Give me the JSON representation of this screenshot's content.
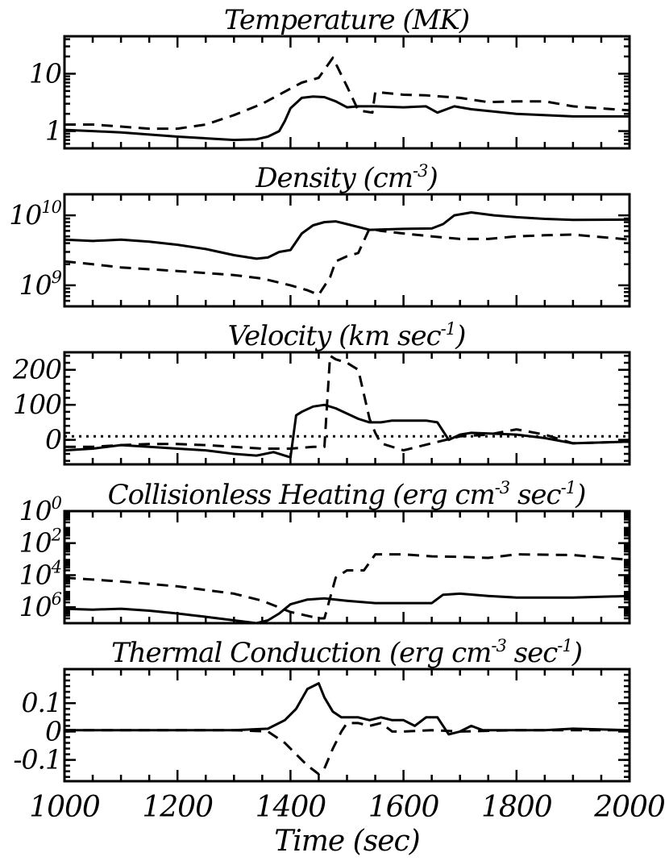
{
  "chart_data": [
    {
      "type": "line",
      "title": "Temperature (MK)",
      "yscale": "log",
      "ylim": [
        0.5,
        45
      ],
      "yticks": [
        {
          "value": 1,
          "label": "1"
        },
        {
          "value": 10,
          "label": "10"
        }
      ],
      "series": [
        {
          "style": "solid",
          "x": [
            1000,
            1050,
            1100,
            1200,
            1300,
            1340,
            1360,
            1380,
            1390,
            1400,
            1420,
            1440,
            1460,
            1480,
            1500,
            1520,
            1550,
            1600,
            1640,
            1660,
            1690,
            1700,
            1720,
            1800,
            1900,
            2000
          ],
          "y": [
            1.05,
            1.0,
            0.95,
            0.8,
            0.7,
            0.72,
            0.8,
            1.0,
            1.5,
            2.5,
            3.8,
            4.0,
            3.9,
            3.3,
            2.6,
            2.7,
            2.7,
            2.6,
            2.7,
            2.1,
            2.7,
            2.6,
            2.4,
            2.0,
            1.8,
            1.8
          ]
        },
        {
          "style": "dashed",
          "x": [
            1000,
            1050,
            1100,
            1150,
            1200,
            1250,
            1300,
            1350,
            1400,
            1420,
            1450,
            1475,
            1500,
            1520,
            1545,
            1550,
            1600,
            1640,
            1700,
            1750,
            1800,
            1850,
            1900,
            2000
          ],
          "y": [
            1.3,
            1.3,
            1.2,
            1.1,
            1.1,
            1.3,
            1.9,
            3.0,
            5.5,
            7.0,
            8.5,
            19.0,
            6.0,
            2.3,
            2.1,
            4.8,
            4.3,
            4.2,
            3.8,
            3.2,
            3.3,
            3.3,
            2.7,
            2.3
          ]
        }
      ]
    },
    {
      "type": "line",
      "title": "Density (cm",
      "title_sup": "-3",
      "title_end": ")",
      "yscale": "log",
      "ylim": [
        500000000,
        20000000000
      ],
      "yticks": [
        {
          "value": 1000000000,
          "base": "10",
          "exp": "9"
        },
        {
          "value": 10000000000,
          "base": "10",
          "exp": "10"
        }
      ],
      "series": [
        {
          "style": "solid",
          "x": [
            1000,
            1050,
            1100,
            1150,
            1200,
            1250,
            1300,
            1340,
            1360,
            1380,
            1400,
            1420,
            1440,
            1460,
            1480,
            1500,
            1540,
            1600,
            1650,
            1670,
            1690,
            1720,
            1760,
            1800,
            1850,
            1900,
            2000
          ],
          "y": [
            4500000000,
            4300000000,
            4500000000,
            4200000000,
            3800000000,
            3300000000,
            2700000000,
            2400000000,
            2500000000,
            3000000000,
            3200000000,
            5500000000,
            7200000000,
            8000000000,
            8200000000,
            7500000000,
            6200000000,
            6400000000,
            6500000000,
            7500000000,
            10000000000,
            11000000000,
            10000000000,
            9400000000,
            8900000000,
            8600000000,
            8700000000
          ]
        },
        {
          "style": "dashed",
          "x": [
            1000,
            1050,
            1100,
            1200,
            1300,
            1350,
            1400,
            1430,
            1450,
            1470,
            1480,
            1500,
            1520,
            1540,
            1560,
            1600,
            1650,
            1700,
            1750,
            1800,
            1850,
            1900,
            2000
          ],
          "y": [
            2200000000,
            2000000000,
            1800000000,
            1600000000,
            1400000000,
            1250000000,
            1000000000,
            850000000,
            730000000,
            1300000000,
            2200000000,
            2600000000,
            2900000000,
            6500000000,
            6000000000,
            5500000000,
            5000000000,
            4600000000,
            4600000000,
            5000000000,
            5200000000,
            5300000000,
            4500000000
          ]
        }
      ]
    },
    {
      "type": "line",
      "title": "Velocity (km sec",
      "title_sup": "-1",
      "title_end": ")",
      "yscale": "linear",
      "ylim": [
        -70,
        250
      ],
      "yticks": [
        {
          "value": 0,
          "label": "0"
        },
        {
          "value": 100,
          "label": "100"
        },
        {
          "value": 200,
          "label": "200"
        }
      ],
      "reference_line": {
        "y": 10,
        "style": "dotted"
      },
      "series": [
        {
          "style": "solid",
          "x": [
            1000,
            1050,
            1100,
            1150,
            1200,
            1250,
            1300,
            1340,
            1370,
            1400,
            1410,
            1420,
            1440,
            1460,
            1480,
            1500,
            1520,
            1540,
            1560,
            1580,
            1600,
            1640,
            1660,
            1680,
            1700,
            1720,
            1800,
            1850,
            1900,
            2000
          ],
          "y": [
            -30,
            -25,
            -15,
            -20,
            -25,
            -30,
            -40,
            -45,
            -35,
            -50,
            70,
            80,
            95,
            100,
            90,
            75,
            60,
            50,
            50,
            55,
            55,
            55,
            50,
            0,
            15,
            20,
            15,
            5,
            -10,
            -5
          ]
        },
        {
          "style": "dashed",
          "x": [
            1000,
            1050,
            1100,
            1150,
            1200,
            1250,
            1300,
            1350,
            1400,
            1440,
            1460,
            1470,
            1480,
            1500,
            1520,
            1540,
            1550,
            1560,
            1600,
            1650,
            1700,
            1750,
            1800,
            1850,
            1900,
            2000
          ],
          "y": [
            -20,
            -20,
            -15,
            -12,
            -12,
            -15,
            -20,
            -25,
            -25,
            -20,
            -20,
            240,
            230,
            220,
            200,
            60,
            20,
            -10,
            -30,
            -10,
            10,
            15,
            30,
            15,
            -10,
            -5
          ]
        }
      ]
    },
    {
      "type": "line",
      "title": "Collisionless Heating (erg cm",
      "title_sup": "-3",
      "title_mid": " sec",
      "title_sup2": "-1",
      "title_end": ")",
      "yscale": "log",
      "ylim": [
        1e-07,
        1
      ],
      "yticks": [
        {
          "value": 1e-06,
          "base": "10",
          "exp": "6"
        },
        {
          "value": 0.0001,
          "base": "10",
          "exp": "4"
        },
        {
          "value": 0.01,
          "base": "10",
          "exp": "2"
        },
        {
          "value": 1,
          "base": "10",
          "exp": "0"
        }
      ],
      "series": [
        {
          "style": "solid",
          "x": [
            1000,
            1050,
            1100,
            1150,
            1200,
            1250,
            1300,
            1340,
            1360,
            1380,
            1400,
            1430,
            1460,
            1500,
            1550,
            1600,
            1650,
            1670,
            1700,
            1750,
            1800,
            1850,
            1900,
            2000
          ],
          "y": [
            8e-07,
            7e-07,
            8e-07,
            6e-07,
            4e-07,
            2.5e-07,
            1.5e-07,
            1e-07,
            1.5e-07,
            4e-07,
            1.5e-06,
            3e-06,
            3.5e-06,
            2.5e-06,
            1.8e-06,
            1.8e-06,
            1.8e-06,
            6e-06,
            7e-06,
            5e-06,
            4e-06,
            4e-06,
            4e-06,
            5e-06
          ]
        },
        {
          "style": "dashed",
          "x": [
            1000,
            1100,
            1200,
            1300,
            1350,
            1400,
            1450,
            1460,
            1480,
            1500,
            1530,
            1550,
            1600,
            1650,
            1700,
            1750,
            1800,
            1900,
            2000
          ],
          "y": [
            7e-05,
            4e-05,
            2e-05,
            7e-06,
            2.5e-06,
            5e-07,
            2e-07,
            2e-07,
            7e-05,
            0.0002,
            0.0002,
            0.002,
            0.002,
            0.0015,
            0.0014,
            0.0012,
            0.002,
            0.0018,
            0.0009
          ]
        }
      ]
    },
    {
      "type": "line",
      "title": "Thermal Conduction (erg cm",
      "title_sup": "-3",
      "title_mid": " sec",
      "title_sup2": "-1",
      "title_end": ")",
      "yscale": "linear",
      "ylim": [
        -0.175,
        0.22
      ],
      "xlim": [
        1000,
        2000
      ],
      "xticks": [
        1000,
        1200,
        1400,
        1600,
        1800,
        2000
      ],
      "xlabel": "Time (sec)",
      "series": [
        {
          "style": "solid",
          "x": [
            1000,
            1100,
            1200,
            1300,
            1360,
            1390,
            1410,
            1430,
            1450,
            1460,
            1475,
            1490,
            1500,
            1520,
            1540,
            1560,
            1580,
            1600,
            1620,
            1640,
            1660,
            1680,
            1700,
            1720,
            1740,
            1800,
            1850,
            1900,
            2000
          ],
          "y": [
            0.005,
            0.005,
            0.005,
            0.005,
            0.01,
            0.04,
            0.08,
            0.15,
            0.17,
            0.12,
            0.07,
            0.05,
            0.05,
            0.05,
            0.04,
            0.05,
            0.04,
            0.04,
            0.02,
            0.05,
            0.05,
            -0.01,
            0.0,
            0.02,
            0.005,
            0.005,
            0.005,
            0.01,
            0.005
          ]
        },
        {
          "style": "dashed",
          "x": [
            1000,
            1100,
            1200,
            1300,
            1360,
            1390,
            1410,
            1430,
            1450,
            1460,
            1475,
            1490,
            1500,
            1520,
            1540,
            1560,
            1580,
            1600,
            1650,
            1700,
            1800,
            1900,
            2000
          ],
          "y": [
            0.005,
            0.005,
            0.005,
            0.005,
            0.0,
            -0.04,
            -0.08,
            -0.12,
            -0.15,
            -0.13,
            -0.06,
            0.0,
            0.03,
            0.03,
            0.02,
            0.03,
            0.0,
            0.0,
            0.005,
            0.0,
            0.005,
            0.005,
            0.005
          ]
        }
      ]
    }
  ],
  "yticks_linear": {
    "p5": [
      {
        "value": -0.1,
        "label": "-0.1"
      },
      {
        "value": 0,
        "label": "0"
      },
      {
        "value": 0.1,
        "label": "0.1"
      }
    ]
  },
  "xtick_labels": [
    "1000",
    "1200",
    "1400",
    "1600",
    "1800",
    "2000"
  ]
}
